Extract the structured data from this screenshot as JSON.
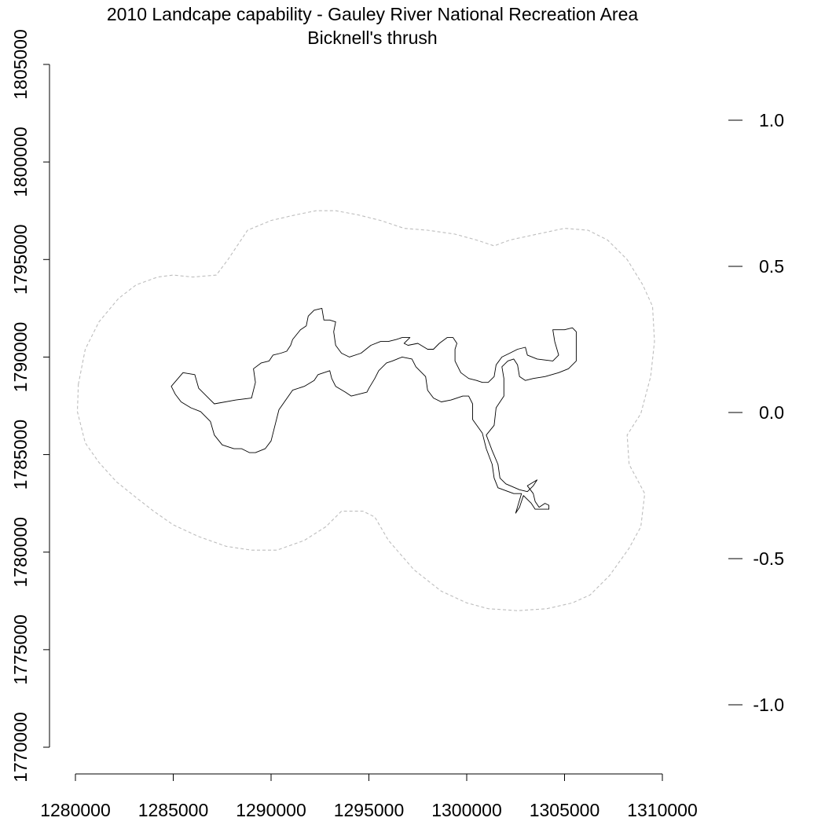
{
  "title": {
    "line1": "2010 Landcape capability - Gauley River National Recreation Area",
    "line2": "Bicknell's thrush"
  },
  "legend_scale": {
    "labels": [
      "1.0",
      "0.5",
      "0.0",
      "-0.5",
      "-1.0"
    ]
  },
  "chart_data": {
    "type": "map",
    "x_axis": {
      "range": [
        1280000,
        1310000
      ],
      "ticks": [
        1280000,
        1285000,
        1290000,
        1295000,
        1300000,
        1305000,
        1310000
      ],
      "tick_labels": [
        "1280000",
        "1285000",
        "1290000",
        "1295000",
        "1300000",
        "1305000",
        "1310000"
      ]
    },
    "y_axis": {
      "range": [
        1770000,
        1805000
      ],
      "ticks": [
        1770000,
        1775000,
        1780000,
        1785000,
        1790000,
        1795000,
        1800000,
        1805000
      ],
      "tick_labels": [
        "1770000",
        "1775000",
        "1780000",
        "1785000",
        "1790000",
        "1795000",
        "1800000",
        "1805000"
      ]
    },
    "legend_scale_values": [
      1.0,
      0.5,
      0.0,
      -0.5,
      -1.0
    ],
    "layers": [
      {
        "id": "buffer",
        "style": "dashed-gray",
        "points": [
          [
            1280150,
            1788600
          ],
          [
            1280500,
            1790400
          ],
          [
            1281200,
            1791800
          ],
          [
            1282200,
            1793000
          ],
          [
            1283100,
            1793700
          ],
          [
            1284200,
            1794100
          ],
          [
            1285000,
            1794200
          ],
          [
            1286000,
            1794100
          ],
          [
            1287200,
            1794200
          ],
          [
            1287800,
            1795000
          ],
          [
            1288800,
            1796500
          ],
          [
            1290000,
            1797000
          ],
          [
            1291300,
            1797300
          ],
          [
            1292300,
            1797500
          ],
          [
            1293300,
            1797500
          ],
          [
            1294400,
            1797300
          ],
          [
            1295600,
            1797000
          ],
          [
            1296800,
            1796600
          ],
          [
            1298000,
            1796500
          ],
          [
            1299400,
            1796300
          ],
          [
            1300500,
            1796000
          ],
          [
            1301400,
            1795700
          ],
          [
            1302200,
            1796000
          ],
          [
            1303600,
            1796300
          ],
          [
            1305000,
            1796600
          ],
          [
            1306200,
            1796500
          ],
          [
            1307200,
            1796000
          ],
          [
            1308200,
            1795000
          ],
          [
            1309000,
            1793700
          ],
          [
            1309500,
            1792600
          ],
          [
            1309600,
            1790800
          ],
          [
            1309400,
            1789000
          ],
          [
            1308900,
            1787100
          ],
          [
            1308200,
            1786000
          ],
          [
            1308300,
            1784500
          ],
          [
            1309100,
            1783000
          ],
          [
            1308900,
            1781300
          ],
          [
            1308300,
            1780200
          ],
          [
            1307300,
            1778800
          ],
          [
            1306300,
            1777800
          ],
          [
            1305400,
            1777400
          ],
          [
            1304100,
            1777100
          ],
          [
            1302600,
            1777000
          ],
          [
            1301100,
            1777100
          ],
          [
            1300000,
            1777400
          ],
          [
            1298700,
            1778000
          ],
          [
            1297300,
            1779100
          ],
          [
            1296000,
            1780600
          ],
          [
            1295300,
            1781800
          ],
          [
            1294700,
            1782100
          ],
          [
            1293600,
            1782100
          ],
          [
            1292800,
            1781300
          ],
          [
            1291700,
            1780600
          ],
          [
            1290300,
            1780100
          ],
          [
            1289000,
            1780100
          ],
          [
            1287700,
            1780300
          ],
          [
            1286300,
            1780800
          ],
          [
            1285000,
            1781400
          ],
          [
            1284000,
            1782100
          ],
          [
            1283100,
            1782800
          ],
          [
            1282100,
            1783600
          ],
          [
            1281200,
            1784600
          ],
          [
            1280500,
            1785600
          ],
          [
            1280100,
            1787200
          ],
          [
            1280150,
            1788600
          ]
        ]
      },
      {
        "id": "boundary",
        "style": "solid-black",
        "points": [
          [
            1284900,
            1788500
          ],
          [
            1285500,
            1789200
          ],
          [
            1286100,
            1789100
          ],
          [
            1286300,
            1788400
          ],
          [
            1286800,
            1787900
          ],
          [
            1287100,
            1787600
          ],
          [
            1288200,
            1787800
          ],
          [
            1289000,
            1787900
          ],
          [
            1289200,
            1788700
          ],
          [
            1289100,
            1789400
          ],
          [
            1289500,
            1789700
          ],
          [
            1289900,
            1789800
          ],
          [
            1290100,
            1790100
          ],
          [
            1290500,
            1790200
          ],
          [
            1290800,
            1790300
          ],
          [
            1291000,
            1790600
          ],
          [
            1291100,
            1790900
          ],
          [
            1291500,
            1791400
          ],
          [
            1291800,
            1791600
          ],
          [
            1291900,
            1792100
          ],
          [
            1292200,
            1792400
          ],
          [
            1292600,
            1792500
          ],
          [
            1292700,
            1791900
          ],
          [
            1293000,
            1791900
          ],
          [
            1293300,
            1791800
          ],
          [
            1293200,
            1791300
          ],
          [
            1293300,
            1790600
          ],
          [
            1293600,
            1790200
          ],
          [
            1294000,
            1790000
          ],
          [
            1294600,
            1790200
          ],
          [
            1295100,
            1790600
          ],
          [
            1295600,
            1790800
          ],
          [
            1296000,
            1790800
          ],
          [
            1296400,
            1790900
          ],
          [
            1296700,
            1791000
          ],
          [
            1297100,
            1791000
          ],
          [
            1296800,
            1790700
          ],
          [
            1297000,
            1790600
          ],
          [
            1297500,
            1790700
          ],
          [
            1298000,
            1790400
          ],
          [
            1298300,
            1790400
          ],
          [
            1298600,
            1790700
          ],
          [
            1299000,
            1791000
          ],
          [
            1299300,
            1791000
          ],
          [
            1299500,
            1790700
          ],
          [
            1299400,
            1790400
          ],
          [
            1299400,
            1789800
          ],
          [
            1299700,
            1789200
          ],
          [
            1300100,
            1788900
          ],
          [
            1300500,
            1788800
          ],
          [
            1300800,
            1788700
          ],
          [
            1301100,
            1788700
          ],
          [
            1301400,
            1789000
          ],
          [
            1301500,
            1789600
          ],
          [
            1301800,
            1790000
          ],
          [
            1302200,
            1790200
          ],
          [
            1302600,
            1790400
          ],
          [
            1303000,
            1790500
          ],
          [
            1303100,
            1790100
          ],
          [
            1303600,
            1789900
          ],
          [
            1304400,
            1789800
          ],
          [
            1304700,
            1790100
          ],
          [
            1304500,
            1790800
          ],
          [
            1304400,
            1791400
          ],
          [
            1305000,
            1791400
          ],
          [
            1305400,
            1791500
          ],
          [
            1305600,
            1791300
          ],
          [
            1305600,
            1790500
          ],
          [
            1305600,
            1789800
          ],
          [
            1305200,
            1789400
          ],
          [
            1304700,
            1789200
          ],
          [
            1304000,
            1789000
          ],
          [
            1303400,
            1788900
          ],
          [
            1303000,
            1788800
          ],
          [
            1302700,
            1789000
          ],
          [
            1302600,
            1789600
          ],
          [
            1302400,
            1789900
          ],
          [
            1302100,
            1789800
          ],
          [
            1301800,
            1789500
          ],
          [
            1301900,
            1788900
          ],
          [
            1301900,
            1788000
          ],
          [
            1301500,
            1787400
          ],
          [
            1301400,
            1786500
          ],
          [
            1301000,
            1786000
          ],
          [
            1301300,
            1785200
          ],
          [
            1301600,
            1784500
          ],
          [
            1301700,
            1783800
          ],
          [
            1302000,
            1783500
          ],
          [
            1302700,
            1783200
          ],
          [
            1303100,
            1783100
          ],
          [
            1303400,
            1783400
          ],
          [
            1303600,
            1783700
          ],
          [
            1303100,
            1783400
          ],
          [
            1303400,
            1783000
          ],
          [
            1303500,
            1782600
          ],
          [
            1303700,
            1782300
          ],
          [
            1304000,
            1782500
          ],
          [
            1304200,
            1782400
          ],
          [
            1304200,
            1782200
          ],
          [
            1303800,
            1782200
          ],
          [
            1303500,
            1782200
          ],
          [
            1303300,
            1782500
          ],
          [
            1302900,
            1782900
          ],
          [
            1302700,
            1782300
          ],
          [
            1302500,
            1782000
          ],
          [
            1302800,
            1783000
          ],
          [
            1302400,
            1783000
          ],
          [
            1301600,
            1783300
          ],
          [
            1301400,
            1783800
          ],
          [
            1301300,
            1784500
          ],
          [
            1301000,
            1785300
          ],
          [
            1300800,
            1786100
          ],
          [
            1300300,
            1786800
          ],
          [
            1300300,
            1787600
          ],
          [
            1300100,
            1788000
          ],
          [
            1299800,
            1788000
          ],
          [
            1299200,
            1787800
          ],
          [
            1298700,
            1787700
          ],
          [
            1298300,
            1787900
          ],
          [
            1298000,
            1788300
          ],
          [
            1297900,
            1789000
          ],
          [
            1297400,
            1789500
          ],
          [
            1297200,
            1789900
          ],
          [
            1296700,
            1790000
          ],
          [
            1296200,
            1789800
          ],
          [
            1295900,
            1789700
          ],
          [
            1295500,
            1789300
          ],
          [
            1295300,
            1788900
          ],
          [
            1295000,
            1788400
          ],
          [
            1294900,
            1788200
          ],
          [
            1294100,
            1788000
          ],
          [
            1293800,
            1788200
          ],
          [
            1293300,
            1788500
          ],
          [
            1293100,
            1788900
          ],
          [
            1293000,
            1789300
          ],
          [
            1292400,
            1789100
          ],
          [
            1292200,
            1788800
          ],
          [
            1291700,
            1788500
          ],
          [
            1291100,
            1788300
          ],
          [
            1290400,
            1787300
          ],
          [
            1290200,
            1786500
          ],
          [
            1290000,
            1785700
          ],
          [
            1289700,
            1785300
          ],
          [
            1289200,
            1785100
          ],
          [
            1288900,
            1785100
          ],
          [
            1288500,
            1785300
          ],
          [
            1288100,
            1785300
          ],
          [
            1287500,
            1785500
          ],
          [
            1287100,
            1786000
          ],
          [
            1286900,
            1786700
          ],
          [
            1286400,
            1787200
          ],
          [
            1285900,
            1787400
          ],
          [
            1285400,
            1787700
          ],
          [
            1285100,
            1788100
          ],
          [
            1284900,
            1788500
          ]
        ]
      }
    ]
  }
}
